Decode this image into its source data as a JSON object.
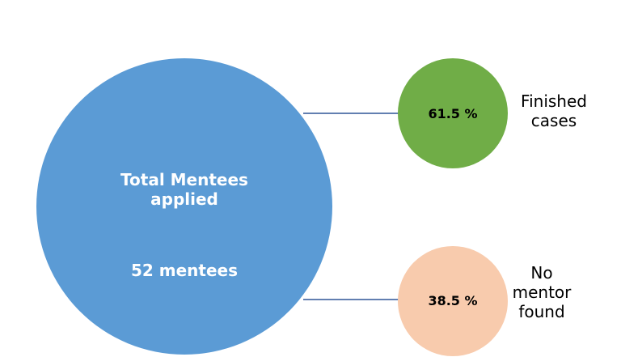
{
  "nodes": [
    {
      "label": "Total Mentees applied",
      "detail": "52 mentees"
    },
    {
      "value": "61.5 %",
      "label": "Finished cases"
    },
    {
      "value": "38.5 %",
      "label": "No mentor found"
    }
  ]
}
